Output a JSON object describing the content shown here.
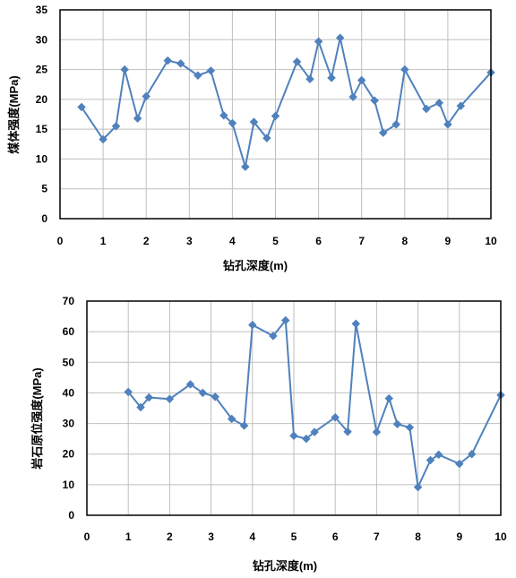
{
  "chart_data": [
    {
      "type": "line",
      "title": "",
      "xlabel": "钻孔深度(m)",
      "ylabel": "煤体强度(MPa)",
      "xlim": [
        0,
        10
      ],
      "ylim": [
        0,
        35
      ],
      "xticks": [
        0,
        1,
        2,
        3,
        4,
        5,
        6,
        7,
        8,
        9,
        10
      ],
      "yticks": [
        0,
        5,
        10,
        15,
        20,
        25,
        30,
        35
      ],
      "grid": true,
      "legend": "none",
      "color": "#4f81bd",
      "marker": "diamond",
      "x": [
        0.5,
        1.0,
        1.3,
        1.5,
        1.8,
        2.0,
        2.5,
        2.8,
        3.2,
        3.5,
        3.8,
        4.0,
        4.3,
        4.5,
        4.8,
        5.0,
        5.5,
        5.8,
        6.0,
        6.3,
        6.5,
        6.8,
        7.0,
        7.3,
        7.5,
        7.8,
        8.0,
        8.5,
        8.8,
        9.0,
        9.3,
        10.0
      ],
      "y": [
        18.7,
        13.3,
        15.5,
        25.0,
        16.8,
        20.5,
        26.5,
        26.0,
        24.0,
        24.8,
        17.3,
        16.0,
        8.7,
        16.2,
        13.5,
        17.2,
        26.3,
        23.4,
        29.7,
        23.6,
        30.3,
        20.4,
        23.2,
        19.8,
        14.4,
        15.8,
        25.0,
        18.4,
        19.4,
        15.8,
        18.9,
        24.5
      ]
    },
    {
      "type": "line",
      "title": "",
      "xlabel": "钻孔深度(m)",
      "ylabel": "岩石原位强度(MPa)",
      "xlim": [
        0,
        10
      ],
      "ylim": [
        0,
        70
      ],
      "xticks": [
        0,
        1,
        2,
        3,
        4,
        5,
        6,
        7,
        8,
        9,
        10
      ],
      "yticks": [
        0,
        10,
        20,
        30,
        40,
        50,
        60,
        70
      ],
      "grid": true,
      "legend": "none",
      "color": "#4f81bd",
      "marker": "diamond",
      "x": [
        1.0,
        1.3,
        1.5,
        2.0,
        2.5,
        2.8,
        3.1,
        3.5,
        3.8,
        4.0,
        4.5,
        4.8,
        5.0,
        5.3,
        5.5,
        6.0,
        6.3,
        6.5,
        7.0,
        7.3,
        7.5,
        7.8,
        8.0,
        8.3,
        8.5,
        9.0,
        9.3,
        10.0
      ],
      "y": [
        40.3,
        35.3,
        38.5,
        38.0,
        42.8,
        40.0,
        38.7,
        31.5,
        29.3,
        62.2,
        58.6,
        63.7,
        26.0,
        25.0,
        27.2,
        32.0,
        27.3,
        62.6,
        27.2,
        38.2,
        29.8,
        28.7,
        9.2,
        18.0,
        19.8,
        16.8,
        20.0,
        39.3
      ]
    }
  ]
}
